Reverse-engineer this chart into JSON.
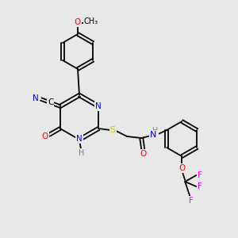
{
  "bg_color": "#e8e8e8",
  "bond_color": "#000000",
  "atom_colors": {
    "N": "#0000ff",
    "O": "#ff0000",
    "S": "#cccc00",
    "F": "#ff00ff",
    "C_label": "#000000",
    "H": "#808080"
  },
  "font_size": 7.5,
  "bond_width": 1.3
}
